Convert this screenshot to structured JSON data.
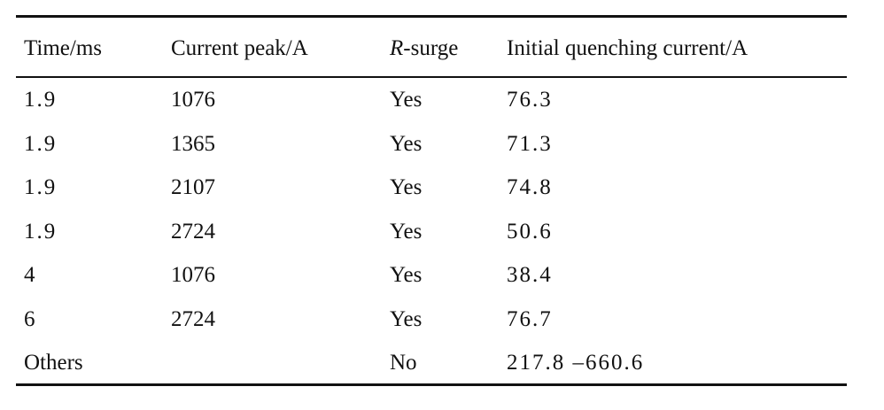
{
  "table": {
    "header": [
      "Time/ms",
      "Current peak/A",
      [
        "R",
        "-surge"
      ],
      "Initial quenching current/A"
    ],
    "rows": [
      [
        "1.9",
        "1076",
        "Yes",
        "76.3"
      ],
      [
        "1.9",
        "1365",
        "Yes",
        "71.3"
      ],
      [
        "1.9",
        "2107",
        "Yes",
        "74.8"
      ],
      [
        "1.9",
        "2724",
        "Yes",
        "50.6"
      ],
      [
        "4",
        "1076",
        "Yes",
        "38.4"
      ],
      [
        "6",
        "2724",
        "Yes",
        "76.7"
      ],
      [
        "Others",
        null,
        "No",
        "217.8 –660.6"
      ]
    ]
  }
}
